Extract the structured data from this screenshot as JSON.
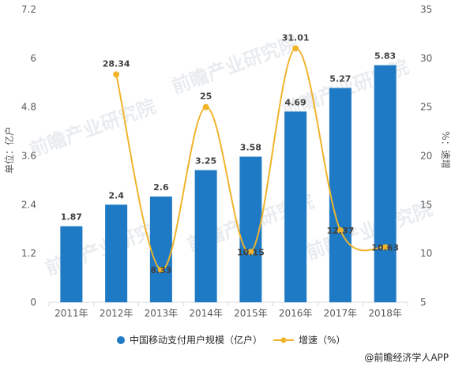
{
  "chart_data": {
    "type": "bar",
    "categories": [
      "2011年",
      "2012年",
      "2013年",
      "2014年",
      "2015年",
      "2016年",
      "2017年",
      "2018年"
    ],
    "series": [
      {
        "name": "中国移动支付用户规模（亿户）",
        "type": "bar",
        "axis": "left",
        "values": [
          1.87,
          2.4,
          2.6,
          3.25,
          3.58,
          4.69,
          5.27,
          5.83
        ],
        "labels": [
          "1.87",
          "2.4",
          "2.6",
          "3.25",
          "3.58",
          "4.69",
          "5.27",
          "5.83"
        ]
      },
      {
        "name": "增速（%）",
        "type": "line",
        "axis": "right",
        "values": [
          null,
          28.34,
          8.33,
          25,
          10.15,
          31.01,
          12.37,
          10.63
        ],
        "labels": [
          "",
          "28.34",
          "8.33",
          "25",
          "10.15",
          "31.01",
          "12.37",
          "10.63"
        ]
      }
    ],
    "ylabel": "单位：亿户",
    "y2label": "%：速增",
    "ylim": [
      0,
      7.2
    ],
    "yticks": [
      "0",
      "1.2",
      "2.4",
      "3.6",
      "4.8",
      "6",
      "7.2"
    ],
    "y2lim": [
      5,
      35
    ],
    "y2ticks": [
      "5",
      "10",
      "15",
      "20",
      "25",
      "30",
      "35"
    ],
    "legend_position": "bottom",
    "grid": false,
    "colors": {
      "bar": "#1f7ac5",
      "line": "#f0b42b",
      "text": "#595959"
    }
  },
  "credit": {
    "text": "@前瞻经济学人APP"
  },
  "watermark": {
    "text": "前瞻产业研究院"
  }
}
